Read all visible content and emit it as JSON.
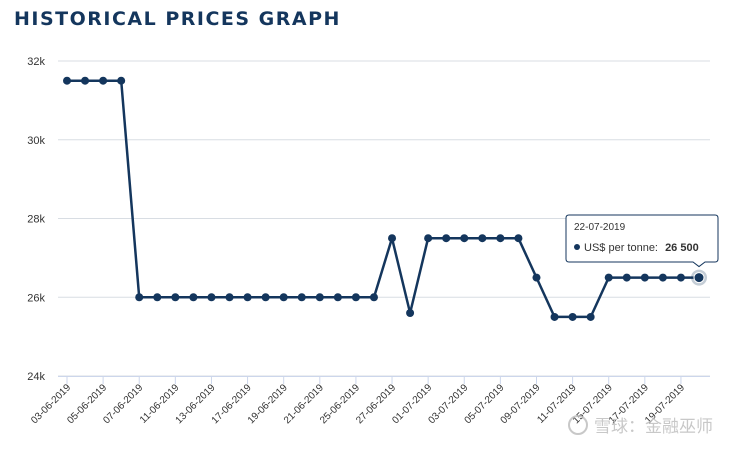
{
  "page": {
    "title": "HISTORICAL PRICES GRAPH"
  },
  "watermark": {
    "text": "雪球：金融巫师"
  },
  "tooltip": {
    "date": "22-07-2019",
    "series_label": "US$ per tonne:",
    "value_label": "26 500"
  },
  "colors": {
    "line": "#14365d",
    "grid": "#d8dde3",
    "axis": "#ccd6eb",
    "text": "#333333"
  },
  "chart_data": {
    "type": "line",
    "title": "HISTORICAL PRICES GRAPH",
    "ylabel": "",
    "xlabel": "",
    "ylim": [
      24000,
      32000
    ],
    "yticks": [
      24000,
      26000,
      28000,
      30000,
      32000
    ],
    "ytick_labels": [
      "24k",
      "26k",
      "28k",
      "30k",
      "32k"
    ],
    "grid": true,
    "xtick_labels": [
      "03-06-2019",
      "05-06-2019",
      "07-06-2019",
      "11-06-2019",
      "13-06-2019",
      "17-06-2019",
      "19-06-2019",
      "21-06-2019",
      "25-06-2019",
      "27-06-2019",
      "01-07-2019",
      "03-07-2019",
      "05-07-2019",
      "09-07-2019",
      "11-07-2019",
      "15-07-2019",
      "17-07-2019",
      "19-07-2019"
    ],
    "series": [
      {
        "name": "US$ per tonne",
        "x": [
          "03-06-2019",
          "04-06-2019",
          "05-06-2019",
          "06-06-2019",
          "07-06-2019",
          "10-06-2019",
          "11-06-2019",
          "12-06-2019",
          "13-06-2019",
          "14-06-2019",
          "17-06-2019",
          "18-06-2019",
          "19-06-2019",
          "20-06-2019",
          "21-06-2019",
          "24-06-2019",
          "25-06-2019",
          "26-06-2019",
          "27-06-2019",
          "28-06-2019",
          "01-07-2019",
          "02-07-2019",
          "03-07-2019",
          "04-07-2019",
          "05-07-2019",
          "08-07-2019",
          "09-07-2019",
          "10-07-2019",
          "11-07-2019",
          "12-07-2019",
          "15-07-2019",
          "16-07-2019",
          "17-07-2019",
          "18-07-2019",
          "19-07-2019",
          "22-07-2019"
        ],
        "values": [
          31500,
          31500,
          31500,
          31500,
          26000,
          26000,
          26000,
          26000,
          26000,
          26000,
          26000,
          26000,
          26000,
          26000,
          26000,
          26000,
          26000,
          26000,
          27500,
          25600,
          27500,
          27500,
          27500,
          27500,
          27500,
          27500,
          26500,
          25500,
          25500,
          25500,
          26500,
          26500,
          26500,
          26500,
          26500,
          26500
        ]
      }
    ],
    "highlight_index": 35
  }
}
